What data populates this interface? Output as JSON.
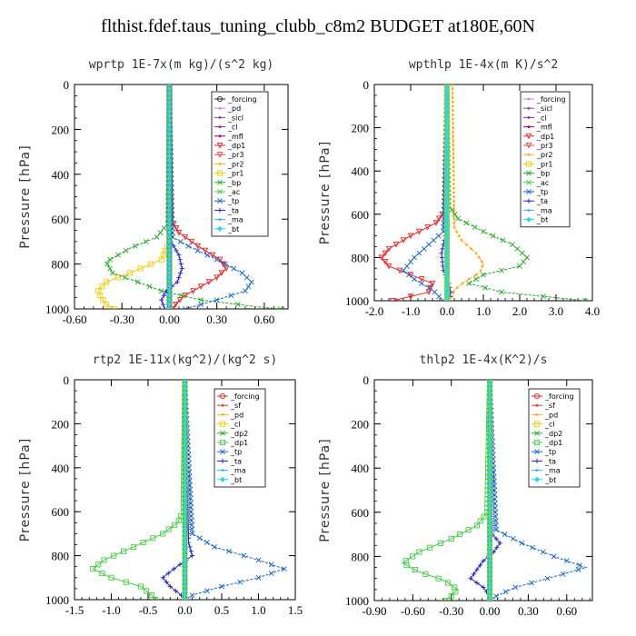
{
  "figure": {
    "title": "flthist.fdef.taus_tuning_clubb_c8m2  BUDGET at180E,60N"
  },
  "chart_data": [
    {
      "type": "line",
      "title": "wprtp  1E-7x(m kg)/(s^2 kg)",
      "ylabel": "Pressure [hPa]",
      "xlim": [
        -0.6,
        0.75
      ],
      "ylim": [
        1000,
        0
      ],
      "xticks": [
        "-0.60",
        "-0.30",
        "0.00",
        "0.30",
        "0.60"
      ],
      "xtick_values": [
        -0.6,
        -0.3,
        0.0,
        0.3,
        0.6
      ],
      "yticks": [
        "0",
        "200",
        "400",
        "600",
        "800",
        "1000"
      ],
      "ytick_values": [
        0,
        200,
        400,
        600,
        800,
        1000
      ],
      "series": [
        {
          "name": "_forcing",
          "color": "#222222",
          "marker": "circle",
          "p": [
            0,
            500,
            1000
          ],
          "v": [
            0,
            0,
            0
          ]
        },
        {
          "name": "_pd",
          "color": "#cc88cc",
          "marker": "dot",
          "p": [
            0,
            1000
          ],
          "v": [
            0,
            0
          ]
        },
        {
          "name": "_sicl",
          "color": "#8844aa",
          "marker": "dot",
          "p": [
            0,
            1000
          ],
          "v": [
            0,
            0
          ]
        },
        {
          "name": "_cl",
          "color": "#aa2288",
          "marker": "dot",
          "p": [
            0,
            1000
          ],
          "v": [
            0,
            0
          ]
        },
        {
          "name": "_mfl",
          "color": "#aa0055",
          "marker": "dot",
          "p": [
            0,
            1000
          ],
          "v": [
            0,
            0
          ]
        },
        {
          "name": "_dp1",
          "color": "#ee2222",
          "marker": "tri",
          "p": [
            0,
            600,
            660,
            720,
            780,
            820,
            860,
            900,
            940,
            970,
            1000
          ],
          "v": [
            0,
            0.01,
            0.06,
            0.18,
            0.32,
            0.36,
            0.3,
            0.2,
            0.1,
            0.05,
            0.02
          ]
        },
        {
          "name": "_pr3",
          "color": "#ee4444",
          "marker": "tri",
          "p": [
            0,
            1000
          ],
          "v": [
            0,
            0
          ]
        },
        {
          "name": "_pr2",
          "color": "#ffaa22",
          "marker": "dot",
          "p": [
            0,
            1000
          ],
          "v": [
            0,
            0
          ]
        },
        {
          "name": "_pr1",
          "color": "#eecc00",
          "marker": "sq",
          "p": [
            0,
            700,
            780,
            840,
            880,
            920,
            950,
            980,
            1000
          ],
          "v": [
            0,
            0,
            -0.05,
            -0.25,
            -0.4,
            -0.45,
            -0.43,
            -0.4,
            -0.35
          ]
        },
        {
          "name": "_bp",
          "color": "#22aa22",
          "marker": "x",
          "p": [
            0,
            620,
            680,
            730,
            790,
            840,
            880,
            920,
            960,
            990,
            1000
          ],
          "v": [
            0,
            -0.01,
            -0.08,
            -0.25,
            -0.4,
            -0.36,
            -0.2,
            -0.05,
            0.2,
            0.55,
            0.7
          ]
        },
        {
          "name": "_ac",
          "color": "#44cc44",
          "marker": "x",
          "p": [
            0,
            1000
          ],
          "v": [
            0,
            0
          ]
        },
        {
          "name": "_tp",
          "color": "#1166cc",
          "marker": "x",
          "p": [
            0,
            680,
            720,
            780,
            840,
            880,
            920,
            960,
            1000
          ],
          "v": [
            0,
            0.02,
            0.12,
            0.3,
            0.46,
            0.52,
            0.48,
            0.3,
            0.1
          ]
        },
        {
          "name": "_ta",
          "color": "#2222cc",
          "marker": "plus",
          "p": [
            0,
            700,
            760,
            820,
            880,
            920,
            960,
            1000
          ],
          "v": [
            0,
            0.01,
            0.06,
            0.08,
            0.05,
            -0.02,
            -0.05,
            -0.03
          ]
        },
        {
          "name": "_ma",
          "color": "#44aaee",
          "marker": "dot",
          "p": [
            0,
            1000
          ],
          "v": [
            0,
            0
          ]
        },
        {
          "name": "_bt",
          "color": "#22dddd",
          "marker": "diamond",
          "p": [
            0,
            1000
          ],
          "v": [
            0,
            0
          ]
        }
      ]
    },
    {
      "type": "line",
      "title": "wpthlp  1E-4x(m K)/s^2",
      "ylabel": "Pressure [hPa]",
      "xlim": [
        -2.0,
        4.0
      ],
      "ylim": [
        1000,
        0
      ],
      "xticks": [
        "-2.0",
        "-1.0",
        "0.0",
        "1.0",
        "2.0",
        "3.0",
        "4.0"
      ],
      "xtick_values": [
        -2,
        -1,
        0,
        1,
        2,
        3,
        4
      ],
      "yticks": [
        "0",
        "200",
        "400",
        "600",
        "800",
        "1000"
      ],
      "ytick_values": [
        0,
        200,
        400,
        600,
        800,
        1000
      ],
      "series": [
        {
          "name": "_forcing",
          "color": "#cc88cc",
          "marker": "dot",
          "p": [
            0,
            1000
          ],
          "v": [
            0,
            0
          ]
        },
        {
          "name": "_sicl",
          "color": "#8844aa",
          "marker": "dot",
          "p": [
            0,
            1000
          ],
          "v": [
            0,
            0
          ]
        },
        {
          "name": "_cl",
          "color": "#aa2288",
          "marker": "dot",
          "p": [
            0,
            1000
          ],
          "v": [
            0,
            0
          ]
        },
        {
          "name": "_mfl",
          "color": "#aa0055",
          "marker": "dot",
          "p": [
            0,
            1000
          ],
          "v": [
            0,
            0
          ]
        },
        {
          "name": "_dp1",
          "color": "#ee2222",
          "marker": "tri",
          "p": [
            0,
            580,
            640,
            700,
            760,
            800,
            840,
            880,
            920,
            960,
            1000
          ],
          "v": [
            0,
            -0.05,
            -0.3,
            -1.0,
            -1.6,
            -1.8,
            -1.6,
            -1.0,
            -0.4,
            -0.5,
            -1.5
          ]
        },
        {
          "name": "_pr3",
          "color": "#ee4444",
          "marker": "tri",
          "p": [
            0,
            1000
          ],
          "v": [
            0,
            0
          ]
        },
        {
          "name": "_pr2",
          "color": "#ffaa22",
          "marker": "dot",
          "p": [
            0,
            660,
            720,
            780,
            830,
            870,
            910,
            950,
            1000
          ],
          "v": [
            0.15,
            0.2,
            0.4,
            0.8,
            1.0,
            0.9,
            0.5,
            0.2,
            0.1
          ]
        },
        {
          "name": "_pr1",
          "color": "#eecc00",
          "marker": "sq",
          "p": [
            0,
            1000
          ],
          "v": [
            0,
            0
          ]
        },
        {
          "name": "_bp",
          "color": "#22aa22",
          "marker": "x",
          "p": [
            0,
            560,
            620,
            680,
            740,
            800,
            840,
            880,
            920,
            960,
            1000
          ],
          "v": [
            0,
            0.05,
            0.3,
            1.0,
            1.8,
            2.2,
            2.0,
            1.0,
            0.6,
            1.5,
            3.8
          ]
        },
        {
          "name": "_ac",
          "color": "#44cc44",
          "marker": "x",
          "p": [
            0,
            1000
          ],
          "v": [
            0,
            0
          ]
        },
        {
          "name": "_tp",
          "color": "#1166cc",
          "marker": "x",
          "p": [
            0,
            680,
            740,
            800,
            860,
            900,
            950,
            1000
          ],
          "v": [
            0,
            -0.1,
            -0.5,
            -0.9,
            -1.2,
            -0.9,
            -0.4,
            -0.1
          ]
        },
        {
          "name": "_ta",
          "color": "#2222cc",
          "marker": "plus",
          "p": [
            0,
            700,
            780,
            860,
            920,
            960,
            1000
          ],
          "v": [
            0,
            -0.05,
            -0.15,
            -0.1,
            0.05,
            0.1,
            0.05
          ]
        },
        {
          "name": "_ma",
          "color": "#44aaee",
          "marker": "dot",
          "p": [
            0,
            1000
          ],
          "v": [
            0,
            0
          ]
        },
        {
          "name": "_bt",
          "color": "#22dddd",
          "marker": "diamond",
          "p": [
            0,
            1000
          ],
          "v": [
            0,
            0
          ]
        }
      ]
    },
    {
      "type": "line",
      "title": "rtp2  1E-11x(kg^2)/(kg^2 s)",
      "ylabel": "Pressure [hPa]",
      "xlim": [
        -1.5,
        1.5
      ],
      "ylim": [
        1000,
        0
      ],
      "xticks": [
        "-1.5",
        "-1.0",
        "-0.5",
        "0.0",
        "0.5",
        "1.0",
        "1.5"
      ],
      "xtick_values": [
        -1.5,
        -1.0,
        -0.5,
        0.0,
        0.5,
        1.0,
        1.5
      ],
      "yticks": [
        "0",
        "200",
        "400",
        "600",
        "800",
        "1000"
      ],
      "ytick_values": [
        0,
        200,
        400,
        600,
        800,
        1000
      ],
      "series": [
        {
          "name": "_forcing",
          "color": "#ee2222",
          "marker": "circle",
          "p": [
            0,
            1000
          ],
          "v": [
            0,
            0
          ]
        },
        {
          "name": "_sf",
          "color": "#dd4422",
          "marker": "dot",
          "p": [
            0,
            1000
          ],
          "v": [
            0,
            0
          ]
        },
        {
          "name": "_pd",
          "color": "#ffaa22",
          "marker": "dot",
          "p": [
            0,
            1000
          ],
          "v": [
            0,
            0
          ]
        },
        {
          "name": "_cl",
          "color": "#eecc00",
          "marker": "sq",
          "p": [
            0,
            1000
          ],
          "v": [
            0,
            0
          ]
        },
        {
          "name": "_dp2",
          "color": "#22aa22",
          "marker": "x",
          "p": [
            0,
            1000
          ],
          "v": [
            0,
            0
          ]
        },
        {
          "name": "_dp1",
          "color": "#44cc44",
          "marker": "sq",
          "p": [
            0,
            600,
            650,
            700,
            760,
            820,
            860,
            900,
            940,
            980,
            1000
          ],
          "v": [
            0,
            -0.02,
            -0.1,
            -0.3,
            -0.7,
            -1.1,
            -1.25,
            -1.0,
            -0.6,
            -0.45,
            -0.4
          ]
        },
        {
          "name": "_tp",
          "color": "#1166cc",
          "marker": "x",
          "p": [
            0,
            700,
            760,
            820,
            860,
            900,
            940,
            980,
            1000
          ],
          "v": [
            0,
            0.1,
            0.4,
            1.0,
            1.35,
            1.0,
            0.5,
            0.1,
            0
          ]
        },
        {
          "name": "_ta",
          "color": "#2222cc",
          "marker": "plus",
          "p": [
            0,
            740,
            800,
            860,
            900,
            940,
            980,
            1000
          ],
          "v": [
            0,
            0.05,
            0.1,
            -0.15,
            -0.3,
            -0.2,
            -0.05,
            0
          ]
        },
        {
          "name": "_ma",
          "color": "#44aaee",
          "marker": "dot",
          "p": [
            0,
            1000
          ],
          "v": [
            0,
            0
          ]
        },
        {
          "name": "_bt",
          "color": "#22dddd",
          "marker": "diamond",
          "p": [
            0,
            1000
          ],
          "v": [
            0,
            0
          ]
        }
      ]
    },
    {
      "type": "line",
      "title": "thlp2  1E-4x(K^2)/s",
      "ylabel": "Pressure [hPa]",
      "xlim": [
        -0.9,
        0.8
      ],
      "ylim": [
        1000,
        0
      ],
      "xticks": [
        "-0.90",
        "-0.60",
        "-0.30",
        "0.00",
        "0.30",
        "0.60"
      ],
      "xtick_values": [
        -0.9,
        -0.6,
        -0.3,
        0.0,
        0.3,
        0.6
      ],
      "yticks": [
        "0",
        "200",
        "400",
        "600",
        "800",
        "1000"
      ],
      "ytick_values": [
        0,
        200,
        400,
        600,
        800,
        1000
      ],
      "series": [
        {
          "name": "_forcing",
          "color": "#ee2222",
          "marker": "circle",
          "p": [
            0,
            1000
          ],
          "v": [
            0,
            0
          ]
        },
        {
          "name": "_sf",
          "color": "#dd4422",
          "marker": "dot",
          "p": [
            0,
            1000
          ],
          "v": [
            0,
            0
          ]
        },
        {
          "name": "_pd",
          "color": "#ffaa22",
          "marker": "dot",
          "p": [
            0,
            1000
          ],
          "v": [
            0,
            0
          ]
        },
        {
          "name": "_cl",
          "color": "#eecc00",
          "marker": "sq",
          "p": [
            0,
            1000
          ],
          "v": [
            0,
            0
          ]
        },
        {
          "name": "_dp2",
          "color": "#22aa22",
          "marker": "x",
          "p": [
            0,
            1000
          ],
          "v": [
            0,
            0
          ]
        },
        {
          "name": "_dp1",
          "color": "#44cc44",
          "marker": "sq",
          "p": [
            0,
            600,
            660,
            720,
            780,
            830,
            870,
            910,
            950,
            980,
            1000
          ],
          "v": [
            0,
            -0.02,
            -0.1,
            -0.3,
            -0.55,
            -0.68,
            -0.55,
            -0.35,
            -0.25,
            -0.3,
            -0.35
          ]
        },
        {
          "name": "_tp",
          "color": "#1166cc",
          "marker": "x",
          "p": [
            0,
            680,
            740,
            800,
            850,
            900,
            940,
            980,
            1000
          ],
          "v": [
            0,
            0.05,
            0.25,
            0.5,
            0.75,
            0.45,
            0.2,
            0.05,
            0
          ]
        },
        {
          "name": "_ta",
          "color": "#2222cc",
          "marker": "plus",
          "p": [
            0,
            700,
            740,
            780,
            820,
            860,
            900,
            940,
            980,
            1000
          ],
          "v": [
            0,
            0.02,
            0.08,
            0.03,
            -0.05,
            -0.1,
            -0.15,
            -0.05,
            0,
            0
          ]
        },
        {
          "name": "_ma",
          "color": "#44aaee",
          "marker": "dot",
          "p": [
            0,
            1000
          ],
          "v": [
            0,
            0
          ]
        },
        {
          "name": "_bt",
          "color": "#22dddd",
          "marker": "diamond",
          "p": [
            0,
            1000
          ],
          "v": [
            0,
            0
          ]
        }
      ]
    }
  ]
}
